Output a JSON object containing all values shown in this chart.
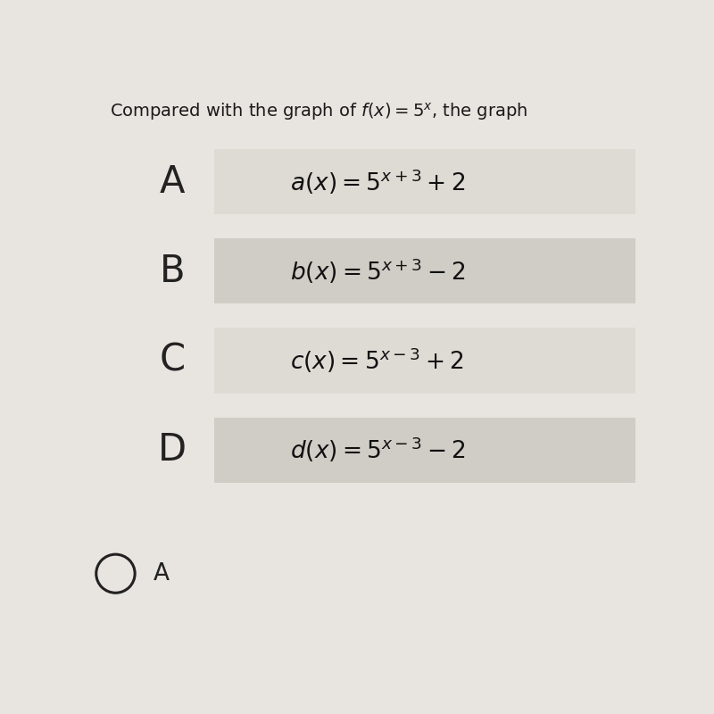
{
  "title": "Compared with the graph of $f(x) = 5^x$, the graph",
  "title_fontsize": 14,
  "bg_color": "#e8e4df",
  "row_color_A": "#dedad4",
  "row_color_B": "#d0ccc6",
  "row_color_C": "#dedad4",
  "row_color_D": "#d0ccc6",
  "options": [
    {
      "label": "A",
      "formula": "$a(x) = 5^{x+3} + 2$"
    },
    {
      "label": "B",
      "formula": "$b(x) = 5^{x+3} - 2$"
    },
    {
      "label": "C",
      "formula": "$c(x) = 5^{x-3} + 2$"
    },
    {
      "label": "D",
      "formula": "$d(x) = 5^{x-3} - 2$"
    }
  ],
  "selected": "A",
  "label_fontsize": 30,
  "formula_fontsize": 19,
  "selected_fontsize": 19,
  "title_color": "#1a1a1a",
  "label_color": "#222222",
  "formula_color": "#111111",
  "circle_facecolor": "#e8e4df",
  "circle_edgecolor": "#222222",
  "circle_linewidth": 2.2
}
